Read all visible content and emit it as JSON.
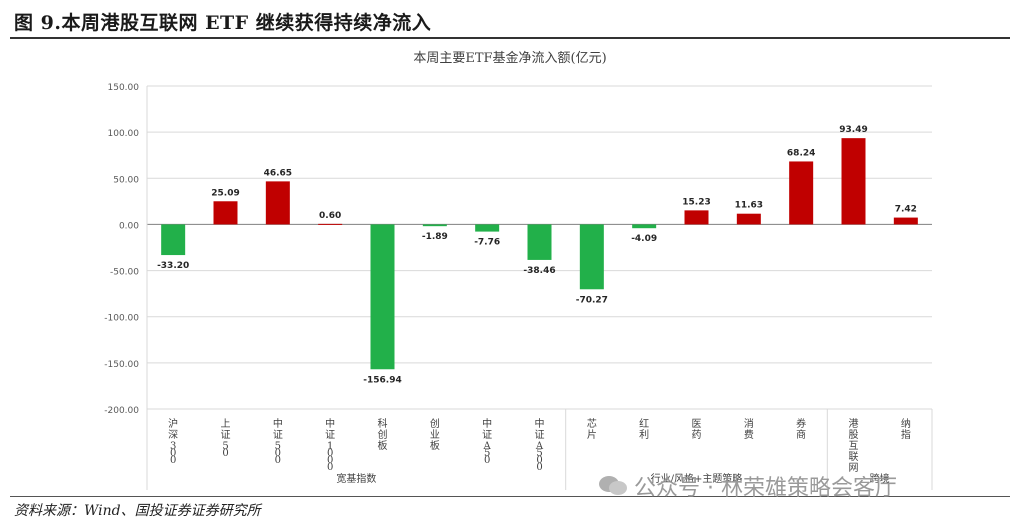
{
  "figure_title": "图 9.本周港股互联网 ETF 继续获得持续净流入",
  "source": "资料来源：Wind、国投证券证券研究所",
  "watermark": "公众号 · 林荣雄策略会客厅",
  "colors": {
    "positive": "#c00000",
    "negative": "#22b04a",
    "grid": "#d9d9d9",
    "axis": "#808080"
  },
  "chart_data": {
    "type": "bar",
    "title": "本周主要ETF基金净流入额(亿元)",
    "ylim": [
      -200,
      150
    ],
    "yticks": [
      "150.00",
      "100.00",
      "50.00",
      "0.00",
      "-50.00",
      "-100.00",
      "-150.00",
      "-200.00"
    ],
    "ytick_values": [
      150,
      100,
      50,
      0,
      -50,
      -100,
      -150,
      -200
    ],
    "grid": true,
    "categories": [
      "沪深300",
      "上证50",
      "中证500",
      "中证1000",
      "科创板",
      "创业板",
      "中证A50",
      "中证A500",
      "芯片",
      "红利",
      "医药",
      "消费",
      "券商",
      "港股互联网",
      "纳指"
    ],
    "values": [
      -33.2,
      25.09,
      46.65,
      0.6,
      -156.94,
      -1.89,
      -7.76,
      -38.46,
      -70.27,
      -4.09,
      15.23,
      11.63,
      68.24,
      93.49,
      7.42
    ],
    "value_labels": [
      "-33.20",
      "25.09",
      "46.65",
      "0.60",
      "-156.94",
      "-1.89",
      "-7.76",
      "-38.46",
      "-70.27",
      "-4.09",
      "15.23",
      "11.63",
      "68.24",
      "93.49",
      "7.42"
    ],
    "groups": [
      {
        "label": "宽基指数",
        "start": 0,
        "end": 7
      },
      {
        "label": "行业/风格+主题策略",
        "start": 8,
        "end": 12
      },
      {
        "label": "跨境",
        "start": 13,
        "end": 14
      }
    ]
  }
}
